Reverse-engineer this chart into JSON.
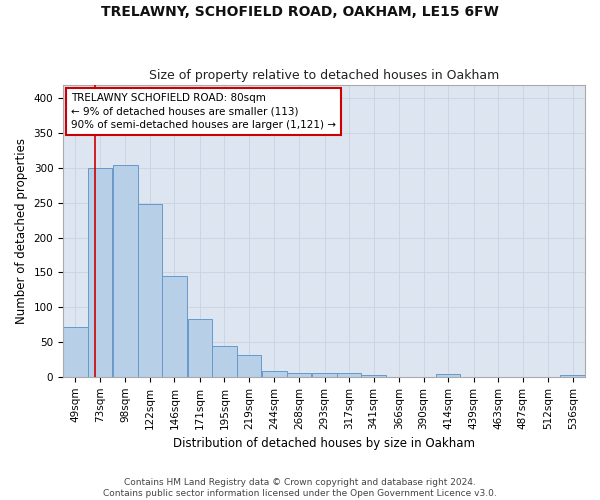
{
  "title": "TRELAWNY, SCHOFIELD ROAD, OAKHAM, LE15 6FW",
  "subtitle": "Size of property relative to detached houses in Oakham",
  "xlabel": "Distribution of detached houses by size in Oakham",
  "ylabel": "Number of detached properties",
  "footer": "Contains HM Land Registry data © Crown copyright and database right 2024.\nContains public sector information licensed under the Open Government Licence v3.0.",
  "categories": [
    "49sqm",
    "73sqm",
    "98sqm",
    "122sqm",
    "146sqm",
    "171sqm",
    "195sqm",
    "219sqm",
    "244sqm",
    "268sqm",
    "293sqm",
    "317sqm",
    "341sqm",
    "366sqm",
    "390sqm",
    "414sqm",
    "439sqm",
    "463sqm",
    "487sqm",
    "512sqm",
    "536sqm"
  ],
  "values": [
    72,
    300,
    304,
    249,
    145,
    83,
    45,
    32,
    9,
    6,
    6,
    6,
    3,
    0,
    0,
    4,
    0,
    0,
    0,
    0,
    3
  ],
  "bar_color": "#b8cfe8",
  "bar_edge_color": "#6699cc",
  "bar_edge_width": 0.7,
  "grid_color": "#c8d4e4",
  "bg_color": "#dde5f0",
  "annotation_box_text": "TRELAWNY SCHOFIELD ROAD: 80sqm\n← 9% of detached houses are smaller (113)\n90% of semi-detached houses are larger (1,121) →",
  "annotation_box_color": "#cc0000",
  "vline_x": 80,
  "vline_color": "#cc0000",
  "ylim": [
    0,
    420
  ],
  "bin_starts": [
    49,
    73,
    98,
    122,
    146,
    171,
    195,
    219,
    244,
    268,
    293,
    317,
    341,
    366,
    390,
    414,
    439,
    463,
    487,
    512,
    536
  ],
  "bin_width": 24,
  "title_fontsize": 10,
  "subtitle_fontsize": 9,
  "label_fontsize": 8.5,
  "tick_fontsize": 7.5,
  "annotation_fontsize": 7.5,
  "footer_fontsize": 6.5
}
